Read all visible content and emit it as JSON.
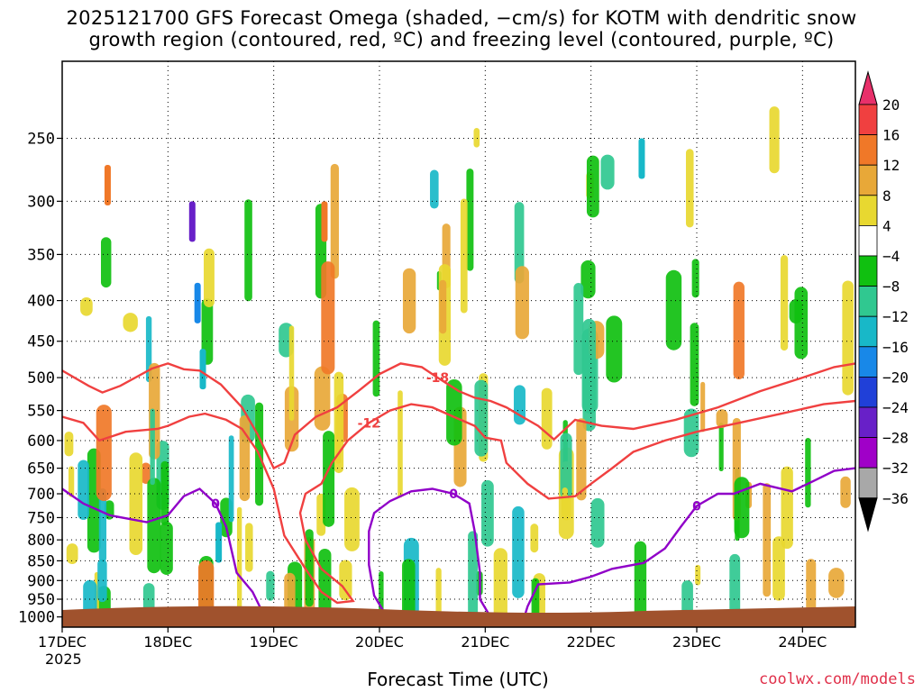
{
  "title": {
    "line1": "2025121700 GFS Forecast Omega (shaded, −cm/s) for KOTM with dendritic snow",
    "line2": "growth region (contoured, red, ºC) and freezing level (contoured, purple, ºC)"
  },
  "x_axis_label": "Forecast Time (UTC)",
  "year_label": "2025",
  "credit": "coolwx.com/models",
  "chart_data": {
    "type": "heatmap",
    "xlabel": "Forecast Time (UTC)",
    "ylabel": "",
    "x_ticks": [
      "17DEC",
      "18DEC",
      "19DEC",
      "20DEC",
      "21DEC",
      "22DEC",
      "23DEC",
      "24DEC"
    ],
    "y_ticks": [
      250,
      300,
      350,
      400,
      450,
      500,
      550,
      600,
      650,
      700,
      750,
      800,
      850,
      900,
      950,
      1000
    ],
    "x_range_days": [
      0,
      7.5
    ],
    "y_range_hpa": [
      200,
      1030
    ],
    "y_scale": "log-pressure",
    "grid": true,
    "colorbar": {
      "labels": [
        "20",
        "16",
        "12",
        "8",
        "4",
        "−4",
        "−8",
        "−12",
        "−16",
        "−20",
        "−24",
        "−28",
        "−32",
        "−36"
      ],
      "colors": [
        "#e8306a",
        "#f04040",
        "#f07828",
        "#e8a838",
        "#e8d830",
        "#ffffff",
        "#10c010",
        "#30c890",
        "#18b8c8",
        "#1888e8",
        "#2040d8",
        "#6820c8",
        "#a000c8",
        "#a8a8a8",
        "#000000"
      ]
    },
    "contours": [
      {
        "label": "-18",
        "color": "#f04040",
        "points": [
          [
            0,
            490
          ],
          [
            0.25,
            512
          ],
          [
            0.38,
            522
          ],
          [
            0.55,
            512
          ],
          [
            0.85,
            487
          ],
          [
            1.0,
            480
          ],
          [
            1.15,
            488
          ],
          [
            1.3,
            490
          ],
          [
            1.5,
            510
          ],
          [
            1.7,
            545
          ],
          [
            1.85,
            590
          ],
          [
            2.0,
            650
          ],
          [
            2.1,
            640
          ],
          [
            2.2,
            590
          ],
          [
            2.4,
            560
          ],
          [
            2.6,
            545
          ],
          [
            2.8,
            520
          ],
          [
            3.0,
            495
          ],
          [
            3.2,
            480
          ],
          [
            3.4,
            485
          ],
          [
            3.55,
            500
          ],
          [
            3.75,
            520
          ],
          [
            3.9,
            530
          ],
          [
            4.05,
            535
          ],
          [
            4.2,
            545
          ],
          [
            4.35,
            560
          ],
          [
            4.5,
            575
          ],
          [
            4.65,
            598
          ],
          [
            4.85,
            565
          ],
          [
            5.1,
            575
          ],
          [
            5.4,
            580
          ],
          [
            5.8,
            565
          ],
          [
            6.2,
            545
          ],
          [
            6.6,
            520
          ],
          [
            7.0,
            500
          ],
          [
            7.3,
            485
          ],
          [
            7.5,
            480
          ]
        ]
      },
      {
        "label": "-12",
        "color": "#f04040",
        "points": [
          [
            0,
            560
          ],
          [
            0.2,
            570
          ],
          [
            0.35,
            600
          ],
          [
            0.6,
            585
          ],
          [
            0.9,
            580
          ],
          [
            1.0,
            575
          ],
          [
            1.2,
            560
          ],
          [
            1.35,
            555
          ],
          [
            1.55,
            565
          ],
          [
            1.7,
            580
          ],
          [
            1.85,
            620
          ],
          [
            2.0,
            690
          ],
          [
            2.1,
            790
          ],
          [
            2.3,
            870
          ],
          [
            2.45,
            930
          ],
          [
            2.6,
            960
          ],
          [
            2.75,
            955
          ],
          [
            2.65,
            915
          ],
          [
            2.45,
            870
          ],
          [
            2.3,
            800
          ],
          [
            2.25,
            740
          ],
          [
            2.3,
            700
          ],
          [
            2.45,
            680
          ],
          [
            2.55,
            640
          ],
          [
            2.7,
            600
          ],
          [
            2.9,
            570
          ],
          [
            3.1,
            550
          ],
          [
            3.3,
            540
          ],
          [
            3.5,
            545
          ],
          [
            3.7,
            560
          ],
          [
            3.9,
            575
          ],
          [
            4.0,
            595
          ],
          [
            4.15,
            600
          ],
          [
            4.2,
            640
          ],
          [
            4.4,
            680
          ],
          [
            4.6,
            710
          ],
          [
            4.85,
            705
          ],
          [
            5.0,
            680
          ],
          [
            5.2,
            650
          ],
          [
            5.4,
            620
          ],
          [
            5.7,
            600
          ],
          [
            6.0,
            585
          ],
          [
            6.4,
            570
          ],
          [
            6.8,
            555
          ],
          [
            7.2,
            540
          ],
          [
            7.5,
            535
          ]
        ]
      },
      {
        "label": "0",
        "color": "#9000c8",
        "points": [
          [
            0,
            690
          ],
          [
            0.2,
            720
          ],
          [
            0.45,
            745
          ],
          [
            0.8,
            760
          ],
          [
            1.0,
            745
          ],
          [
            1.15,
            705
          ],
          [
            1.3,
            690
          ],
          [
            1.45,
            720
          ],
          [
            1.55,
            770
          ],
          [
            1.65,
            880
          ],
          [
            1.8,
            930
          ],
          [
            1.9,
            990
          ],
          [
            2.0,
            1020
          ]
        ]
      },
      {
        "label": "0",
        "color": "#9000c8",
        "points": [
          [
            3.05,
            990
          ],
          [
            2.95,
            940
          ],
          [
            2.9,
            860
          ],
          [
            2.9,
            780
          ],
          [
            2.95,
            740
          ],
          [
            3.1,
            715
          ],
          [
            3.3,
            695
          ],
          [
            3.5,
            690
          ],
          [
            3.7,
            700
          ],
          [
            3.85,
            720
          ],
          [
            3.9,
            780
          ],
          [
            3.95,
            880
          ],
          [
            3.95,
            950
          ],
          [
            4.05,
            1000
          ],
          [
            4.1,
            1025
          ]
        ]
      },
      {
        "label": "0",
        "color": "#9000c8",
        "points": [
          [
            4.35,
            1020
          ],
          [
            4.4,
            970
          ],
          [
            4.5,
            910
          ],
          [
            4.8,
            905
          ],
          [
            5.0,
            890
          ],
          [
            5.2,
            870
          ],
          [
            5.5,
            855
          ],
          [
            5.7,
            820
          ],
          [
            5.85,
            770
          ],
          [
            6.0,
            725
          ],
          [
            6.2,
            700
          ],
          [
            6.35,
            700
          ],
          [
            6.6,
            680
          ],
          [
            6.9,
            695
          ],
          [
            7.1,
            675
          ],
          [
            7.3,
            655
          ],
          [
            7.5,
            650
          ]
        ]
      }
    ],
    "terrain": {
      "color": "#a0522d",
      "surface_pressure_hpa": 975
    }
  }
}
